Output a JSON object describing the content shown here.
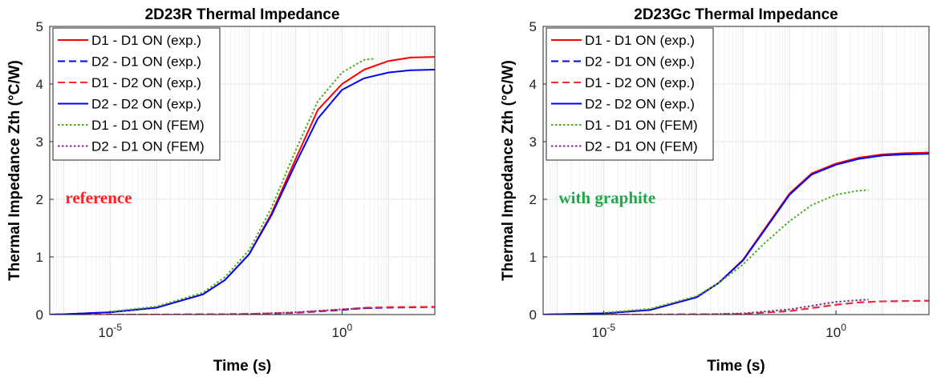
{
  "chart_data": [
    {
      "type": "line",
      "title": "2D23R Thermal Impedance",
      "xlabel": "Time (s)",
      "ylabel": "Thermal Impedance Zth (°C/W)",
      "xscale": "log",
      "xlim": [
        5e-07,
        100
      ],
      "ylim": [
        0,
        5
      ],
      "yticks": [
        "0",
        "1",
        "2",
        "3",
        "4",
        "5"
      ],
      "xticks": [
        {
          "base": "10",
          "exp": "-5",
          "value": 1e-05
        },
        {
          "base": "10",
          "exp": "0",
          "value": 1
        }
      ],
      "grid": true,
      "legend": "top-left",
      "annotation": {
        "text": "reference",
        "color": "#ff1f1f",
        "x": 1e-06,
        "y": 2.0
      },
      "series": [
        {
          "name": "D1 - D1 ON (exp.)",
          "color": "#ff0000",
          "dash": "solid",
          "x": [
            5e-07,
            1e-06,
            1e-05,
            0.0001,
            0.001,
            0.003,
            0.01,
            0.03,
            0.1,
            0.3,
            1,
            3,
            10,
            30,
            100
          ],
          "y": [
            0,
            0.005,
            0.04,
            0.12,
            0.35,
            0.6,
            1.05,
            1.75,
            2.7,
            3.55,
            4.0,
            4.25,
            4.4,
            4.46,
            4.47
          ]
        },
        {
          "name": "D2 - D1 ON (exp.)",
          "color": "#0000ff",
          "dash": "dashed",
          "x": [
            5e-07,
            0.0001,
            0.01,
            0.1,
            1,
            3,
            10,
            100
          ],
          "y": [
            0,
            0,
            0.01,
            0.03,
            0.08,
            0.11,
            0.12,
            0.13
          ]
        },
        {
          "name": "D1 - D2 ON (exp.)",
          "color": "#ff2a2a",
          "dash": "dashed",
          "x": [
            5e-07,
            0.0001,
            0.01,
            0.1,
            1,
            3,
            10,
            100
          ],
          "y": [
            0,
            0,
            0.01,
            0.035,
            0.09,
            0.12,
            0.13,
            0.135
          ]
        },
        {
          "name": "D2 - D2 ON (exp.)",
          "color": "#0000ff",
          "dash": "solid",
          "x": [
            5e-07,
            1e-06,
            1e-05,
            0.0001,
            0.001,
            0.003,
            0.01,
            0.03,
            0.1,
            0.3,
            1,
            3,
            10,
            30,
            100
          ],
          "y": [
            0,
            0.005,
            0.04,
            0.12,
            0.35,
            0.6,
            1.05,
            1.72,
            2.62,
            3.4,
            3.9,
            4.1,
            4.2,
            4.24,
            4.25
          ]
        },
        {
          "name": "D1 - D1 ON (FEM)",
          "color": "#4cae1e",
          "dash": "dotted",
          "x": [
            1e-05,
            0.0001,
            0.001,
            0.003,
            0.01,
            0.03,
            0.1,
            0.3,
            1,
            3,
            5
          ],
          "y": [
            0.05,
            0.14,
            0.38,
            0.65,
            1.12,
            1.85,
            2.85,
            3.7,
            4.2,
            4.42,
            4.44
          ]
        },
        {
          "name": "D2 - D1 ON (FEM)",
          "color": "#7e2f8e",
          "dash": "dotted",
          "x": [
            1e-05,
            0.001,
            0.01,
            0.1,
            1,
            3,
            5
          ],
          "y": [
            0,
            0,
            0.01,
            0.04,
            0.09,
            0.11,
            0.11
          ]
        }
      ]
    },
    {
      "type": "line",
      "title": "2D23Gc Thermal Impedance",
      "xlabel": "Time (s)",
      "ylabel": "Thermal Impedance Zth (°C/W)",
      "xscale": "log",
      "xlim": [
        5e-07,
        100
      ],
      "ylim": [
        0,
        5
      ],
      "yticks": [
        "0",
        "1",
        "2",
        "3",
        "4",
        "5"
      ],
      "xticks": [
        {
          "base": "10",
          "exp": "-5",
          "value": 1e-05
        },
        {
          "base": "10",
          "exp": "0",
          "value": 1
        }
      ],
      "grid": true,
      "legend": "top-left",
      "annotation": {
        "text": "with graphite",
        "color": "#1ea84a",
        "x": 1e-06,
        "y": 2.0
      },
      "series": [
        {
          "name": "D1 - D1 ON (exp.)",
          "color": "#ff0000",
          "dash": "solid",
          "x": [
            5e-07,
            1e-06,
            1e-05,
            0.0001,
            0.001,
            0.003,
            0.01,
            0.03,
            0.1,
            0.3,
            1,
            3,
            10,
            30,
            100
          ],
          "y": [
            0,
            0.005,
            0.02,
            0.08,
            0.3,
            0.55,
            0.95,
            1.5,
            2.1,
            2.45,
            2.62,
            2.72,
            2.78,
            2.8,
            2.81
          ]
        },
        {
          "name": "D2 - D1 ON (exp.)",
          "color": "#0000ff",
          "dash": "dashed",
          "x": [
            5e-07,
            0.0001,
            0.01,
            0.1,
            1,
            3,
            10,
            100
          ],
          "y": [
            0,
            0,
            0.01,
            0.06,
            0.17,
            0.21,
            0.23,
            0.24
          ]
        },
        {
          "name": "D1 - D2 ON (exp.)",
          "color": "#ff2a2a",
          "dash": "dashed",
          "x": [
            5e-07,
            0.0001,
            0.01,
            0.1,
            1,
            3,
            10,
            100
          ],
          "y": [
            0,
            0,
            0.01,
            0.06,
            0.17,
            0.21,
            0.23,
            0.24
          ]
        },
        {
          "name": "D2 - D2 ON (exp.)",
          "color": "#0000ff",
          "dash": "solid",
          "x": [
            5e-07,
            1e-06,
            1e-05,
            0.0001,
            0.001,
            0.003,
            0.01,
            0.03,
            0.1,
            0.3,
            1,
            3,
            10,
            30,
            100
          ],
          "y": [
            0,
            0.005,
            0.02,
            0.08,
            0.3,
            0.55,
            0.94,
            1.48,
            2.08,
            2.43,
            2.6,
            2.7,
            2.76,
            2.78,
            2.79
          ]
        },
        {
          "name": "D1 - D1 ON (FEM)",
          "color": "#4cae1e",
          "dash": "dotted",
          "x": [
            1e-05,
            0.0001,
            0.001,
            0.003,
            0.01,
            0.03,
            0.1,
            0.3,
            1,
            3,
            5
          ],
          "y": [
            0.03,
            0.1,
            0.32,
            0.55,
            0.87,
            1.25,
            1.62,
            1.9,
            2.08,
            2.15,
            2.16
          ]
        },
        {
          "name": "D2 - D1 ON (FEM)",
          "color": "#7e2f8e",
          "dash": "dotted",
          "x": [
            1e-05,
            0.001,
            0.01,
            0.1,
            1,
            3,
            5
          ],
          "y": [
            0,
            0,
            0.02,
            0.09,
            0.22,
            0.25,
            0.26
          ]
        }
      ]
    }
  ]
}
